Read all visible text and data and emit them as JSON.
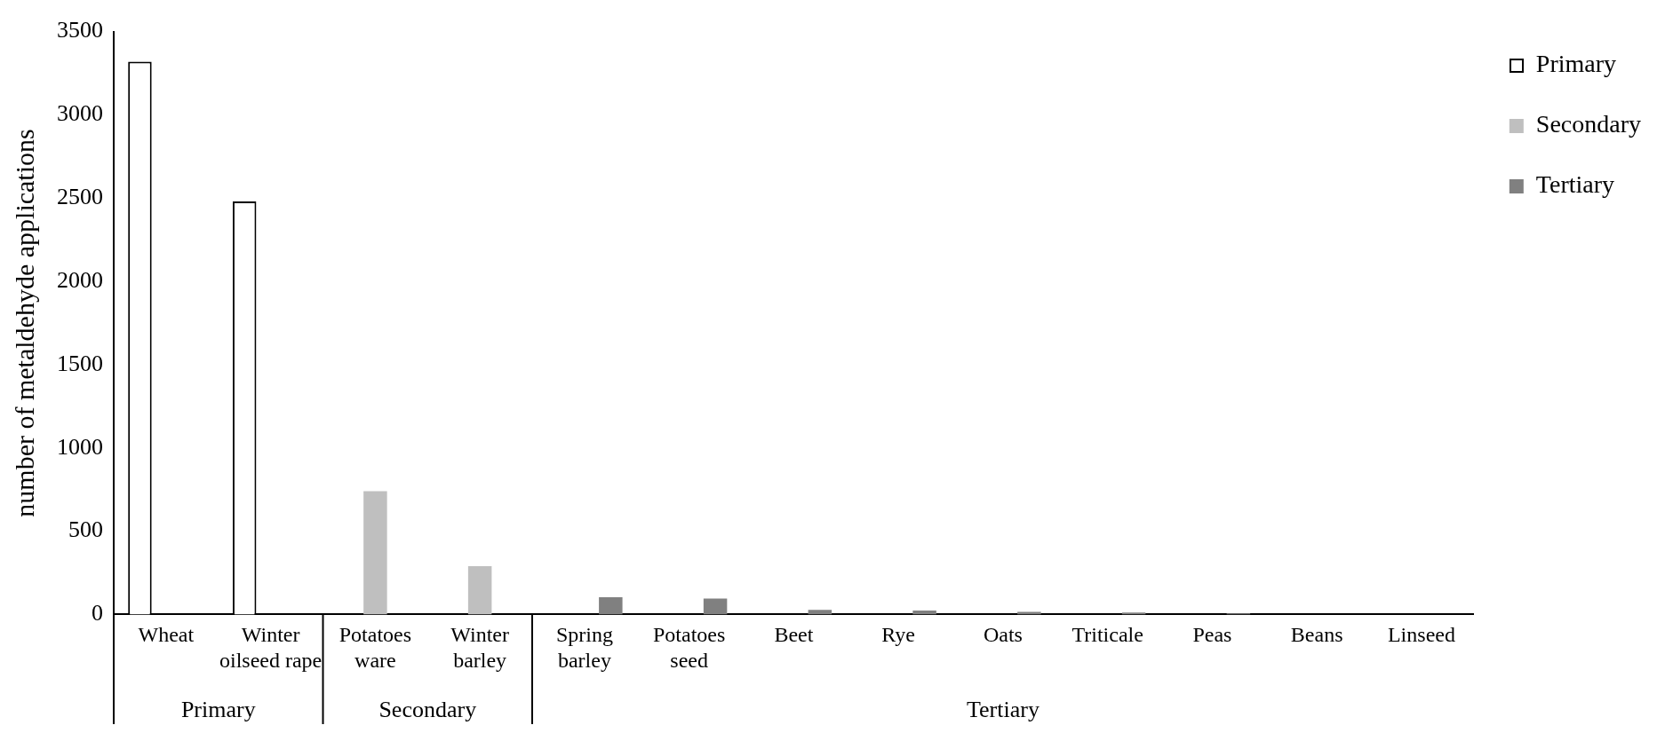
{
  "chart_data": {
    "type": "bar",
    "ylabel": "number of metaldehyde applications",
    "categories": [
      "Wheat",
      "Winter oilseed rape",
      "Potatoes ware",
      "Winter barley",
      "Spring barley",
      "Potatoes seed",
      "Beet",
      "Rye",
      "Oats",
      "Triticale",
      "Peas",
      "Beans",
      "Linseed"
    ],
    "series": [
      {
        "name": "Primary",
        "color": "#ffffff",
        "values": [
          3320,
          2480,
          null,
          null,
          null,
          null,
          null,
          null,
          null,
          null,
          null,
          null,
          null
        ]
      },
      {
        "name": "Secondary",
        "color": "#bfbfbf",
        "values": [
          null,
          null,
          740,
          290,
          null,
          null,
          null,
          null,
          null,
          null,
          null,
          null,
          null
        ]
      },
      {
        "name": "Tertiary",
        "color": "#808080",
        "values": [
          null,
          null,
          null,
          null,
          103,
          96,
          28,
          24,
          16,
          12,
          6,
          0,
          0
        ]
      }
    ],
    "annotations": [
      "Primary",
      "Secondary",
      "Tertiary"
    ],
    "ylim": [
      0,
      3500
    ],
    "yticks": [
      0,
      500,
      1000,
      1500,
      2000,
      2500,
      3000,
      3500
    ],
    "grid": false,
    "legend": "top right"
  }
}
